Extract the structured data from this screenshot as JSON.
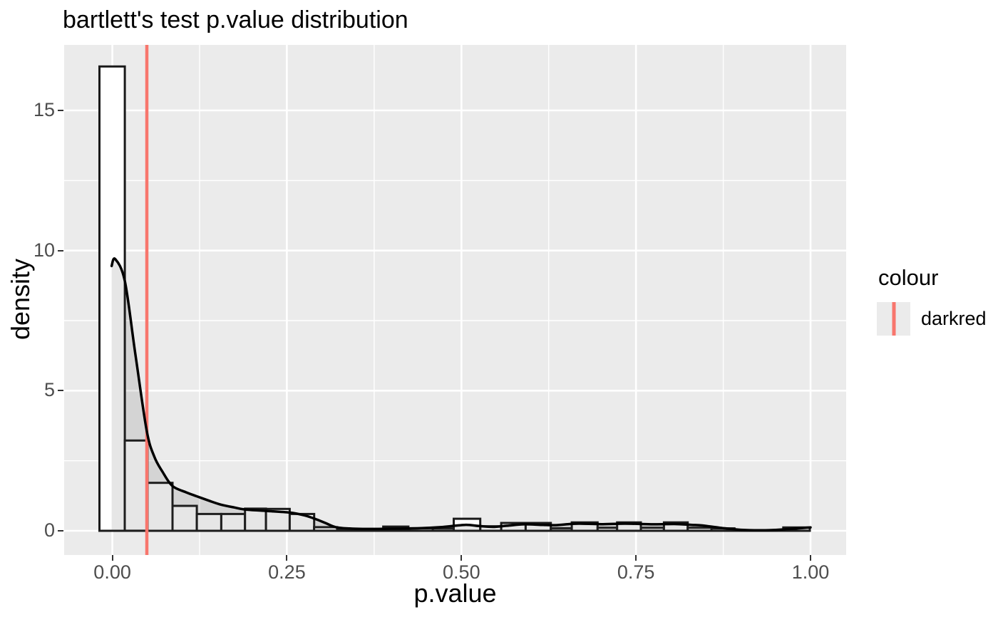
{
  "title": "bartlett's test p.value distribution",
  "axes": {
    "x_title": "p.value",
    "y_title": "density"
  },
  "legend": {
    "title": "colour",
    "items": [
      {
        "label": "darkred",
        "swatch_color": "#F8766D"
      }
    ]
  },
  "chart_data": {
    "type": "histogram_with_density",
    "title": "bartlett's test p.value distribution",
    "xlabel": "p.value",
    "ylabel": "density",
    "xlim": [
      -0.069,
      1.051
    ],
    "ylim": [
      -0.865,
      17.34
    ],
    "grid": "major-and-minor",
    "legend_position": "right",
    "x_ticks": [
      {
        "label": "0.00",
        "value": 0.0
      },
      {
        "label": "0.25",
        "value": 0.25
      },
      {
        "label": "0.50",
        "value": 0.5
      },
      {
        "label": "0.75",
        "value": 0.75
      },
      {
        "label": "1.00",
        "value": 1.0
      }
    ],
    "y_ticks": [
      {
        "label": "0",
        "value": 0
      },
      {
        "label": "5",
        "value": 5
      },
      {
        "label": "10",
        "value": 10
      },
      {
        "label": "15",
        "value": 15
      }
    ],
    "x_minor_gridlines": [
      0.125,
      0.375,
      0.625,
      0.875
    ],
    "y_minor_gridlines": [
      2.5,
      7.5,
      12.5
    ],
    "bars": [
      {
        "x0": -0.0185,
        "x1": 0.0178,
        "h": 16.57
      },
      {
        "x0": 0.0178,
        "x1": 0.0505,
        "h": 3.22
      },
      {
        "x0": 0.0505,
        "x1": 0.0862,
        "h": 1.71
      },
      {
        "x0": 0.0862,
        "x1": 0.121,
        "h": 0.89
      },
      {
        "x0": 0.121,
        "x1": 0.156,
        "h": 0.6
      },
      {
        "x0": 0.156,
        "x1": 0.19,
        "h": 0.6
      },
      {
        "x0": 0.19,
        "x1": 0.22,
        "h": 0.79
      },
      {
        "x0": 0.22,
        "x1": 0.254,
        "h": 0.78
      },
      {
        "x0": 0.254,
        "x1": 0.289,
        "h": 0.6
      },
      {
        "x0": 0.289,
        "x1": 0.322,
        "h": 0.13
      },
      {
        "x0": 0.322,
        "x1": 0.357,
        "h": 0.05
      },
      {
        "x0": 0.357,
        "x1": 0.388,
        "h": 0.02
      },
      {
        "x0": 0.388,
        "x1": 0.424,
        "h": 0.15
      },
      {
        "x0": 0.424,
        "x1": 0.459,
        "h": 0.09
      },
      {
        "x0": 0.459,
        "x1": 0.489,
        "h": 0.085
      },
      {
        "x0": 0.489,
        "x1": 0.527,
        "h": 0.43
      },
      {
        "x0": 0.527,
        "x1": 0.557,
        "h": 0.16
      },
      {
        "x0": 0.557,
        "x1": 0.592,
        "h": 0.28
      },
      {
        "x0": 0.592,
        "x1": 0.628,
        "h": 0.28
      },
      {
        "x0": 0.628,
        "x1": 0.658,
        "h": 0.09
      },
      {
        "x0": 0.658,
        "x1": 0.695,
        "h": 0.3
      },
      {
        "x0": 0.695,
        "x1": 0.723,
        "h": 0.11
      },
      {
        "x0": 0.723,
        "x1": 0.757,
        "h": 0.3
      },
      {
        "x0": 0.757,
        "x1": 0.79,
        "h": 0.11
      },
      {
        "x0": 0.79,
        "x1": 0.824,
        "h": 0.3
      },
      {
        "x0": 0.824,
        "x1": 0.858,
        "h": 0.11
      },
      {
        "x0": 0.858,
        "x1": 0.891,
        "h": 0.085
      },
      {
        "x0": 0.891,
        "x1": 0.926,
        "h": 0.0
      },
      {
        "x0": 0.926,
        "x1": 0.961,
        "h": 0.0
      },
      {
        "x0": 0.961,
        "x1": 0.999,
        "h": 0.12
      }
    ],
    "density_curve": [
      [
        -0.001,
        9.45
      ],
      [
        0.004,
        9.7
      ],
      [
        0.018,
        8.9
      ],
      [
        0.033,
        6.3
      ],
      [
        0.049,
        3.6
      ],
      [
        0.06,
        2.65
      ],
      [
        0.072,
        2.1
      ],
      [
        0.086,
        1.6
      ],
      [
        0.105,
        1.38
      ],
      [
        0.121,
        1.23
      ],
      [
        0.14,
        1.06
      ],
      [
        0.156,
        0.93
      ],
      [
        0.175,
        0.83
      ],
      [
        0.19,
        0.76
      ],
      [
        0.22,
        0.71
      ],
      [
        0.254,
        0.65
      ],
      [
        0.275,
        0.55
      ],
      [
        0.29,
        0.43
      ],
      [
        0.305,
        0.28
      ],
      [
        0.32,
        0.13
      ],
      [
        0.34,
        0.08
      ],
      [
        0.36,
        0.065
      ],
      [
        0.4,
        0.075
      ],
      [
        0.44,
        0.09
      ],
      [
        0.47,
        0.13
      ],
      [
        0.505,
        0.21
      ],
      [
        0.525,
        0.17
      ],
      [
        0.545,
        0.14
      ],
      [
        0.565,
        0.18
      ],
      [
        0.59,
        0.23
      ],
      [
        0.615,
        0.21
      ],
      [
        0.635,
        0.2
      ],
      [
        0.655,
        0.24
      ],
      [
        0.67,
        0.255
      ],
      [
        0.7,
        0.235
      ],
      [
        0.735,
        0.255
      ],
      [
        0.775,
        0.23
      ],
      [
        0.805,
        0.24
      ],
      [
        0.83,
        0.21
      ],
      [
        0.845,
        0.19
      ],
      [
        0.87,
        0.11
      ],
      [
        0.9,
        0.035
      ],
      [
        0.935,
        0.02
      ],
      [
        0.965,
        0.055
      ],
      [
        1.0,
        0.12
      ]
    ],
    "vline": {
      "x": 0.0494,
      "color": "#F8766D",
      "legend_label": "darkred"
    },
    "colors": {
      "panel_background": "#EBEBEB",
      "gridline": "#FFFFFF",
      "bar_fill": "#FFFFFF",
      "bar_stroke": "#1A1A1A",
      "density_fill": "rgba(60,60,60,0.13)",
      "density_line": "#000000",
      "tick_text": "#4D4D4D",
      "tick_mark": "#333333"
    }
  }
}
